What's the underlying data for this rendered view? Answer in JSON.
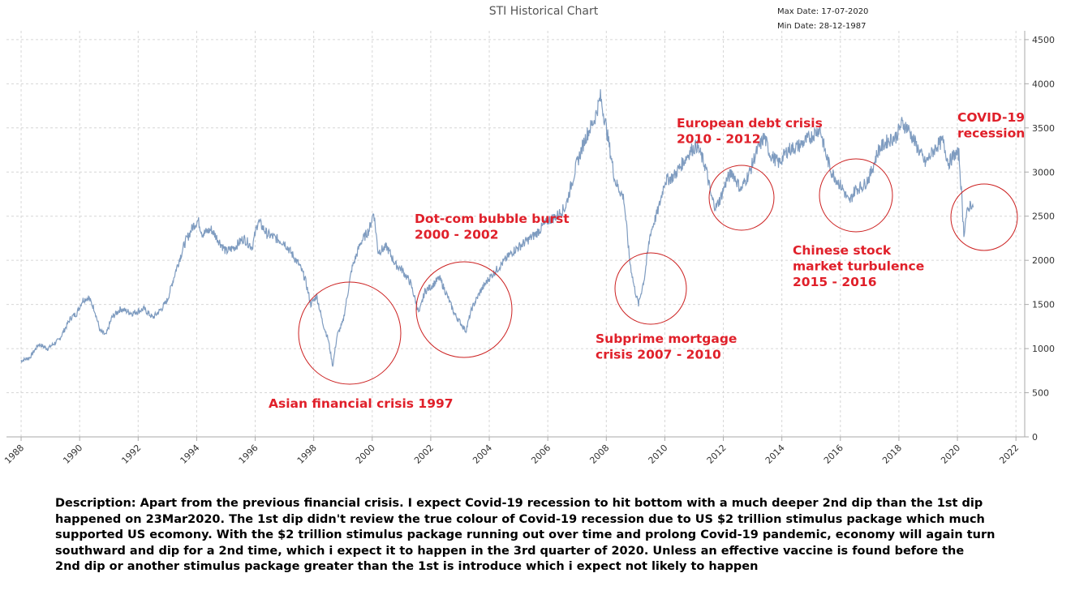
{
  "title": "STI Historical Chart",
  "max_date": "Max Date: 17-07-2020",
  "min_date": "Min Date: 28-12-1987",
  "description": [
    "Description: Apart from the previous financial crisis. I expect Covid-19 recession to hit bottom with a much deeper 2nd dip than the 1st dip",
    "happened on 23Mar2020. The 1st dip didn't review the true colour of Covid-19 recession due to US $2 trillion stimulus package which much",
    "supported US ecomony. With the $2 trillion stimulus package running out over time and prolong Covid-19 pandemic, economy will again turn",
    "southward and dip for a 2nd time, which i expect it to happen in the 3rd quarter of 2020. Unless an effective vaccine is found before the",
    "2nd dip or another stimulus package greater than the 1st is introduce which i expect not likely to happen"
  ],
  "colors": {
    "line": "#7f9cc0",
    "annotation": "#e0202a",
    "grid": "#d6d6d6",
    "axis": "#aaaaaa"
  },
  "chart_data": {
    "type": "line",
    "title": "STI Historical Chart",
    "xlabel": "",
    "ylabel": "",
    "xlim": [
      1987.5,
      2022.3
    ],
    "ylim": [
      0,
      4600
    ],
    "grid": true,
    "y_axis_side": "right",
    "x_ticks": [
      "1988",
      "1990",
      "1992",
      "1994",
      "1996",
      "1998",
      "2000",
      "2002",
      "2004",
      "2006",
      "2008",
      "2010",
      "2012",
      "2014",
      "2016",
      "2018",
      "2020",
      "2022"
    ],
    "y_ticks": [
      "0",
      "500",
      "1000",
      "1500",
      "2000",
      "2500",
      "3000",
      "3500",
      "4000",
      "4500"
    ],
    "series": [
      {
        "x": [
          1987.99,
          1988.3,
          1988.6,
          1988.9,
          1989.3,
          1989.7,
          1989.9,
          1990.1,
          1990.3,
          1990.5,
          1990.7,
          1990.9,
          1991.1,
          1991.4,
          1991.8,
          1992.2,
          1992.5,
          1992.8,
          1993.0,
          1993.3,
          1993.6,
          1993.9,
          1994.05,
          1994.2,
          1994.5,
          1994.8,
          1995.0,
          1995.3,
          1995.6,
          1995.9,
          1996.1,
          1996.4,
          1996.7,
          1997.0,
          1997.3,
          1997.5,
          1997.7,
          1997.9,
          1998.1,
          1998.3,
          1998.5,
          1998.65,
          1998.8,
          1999.0,
          1999.3,
          1999.6,
          1999.9,
          2000.05,
          2000.2,
          2000.5,
          2000.8,
          2001.0,
          2001.3,
          2001.6,
          2001.8,
          2002.0,
          2002.3,
          2002.5,
          2002.8,
          2003.0,
          2003.2,
          2003.4,
          2003.7,
          2004.0,
          2004.4,
          2004.8,
          2005.2,
          2005.6,
          2006.0,
          2006.3,
          2006.6,
          2007.0,
          2007.3,
          2007.6,
          2007.8,
          2008.0,
          2008.3,
          2008.6,
          2008.8,
          2008.95,
          2009.1,
          2009.3,
          2009.5,
          2009.8,
          2010.0,
          2010.3,
          2010.6,
          2010.9,
          2011.1,
          2011.4,
          2011.6,
          2011.75,
          2011.9,
          2012.1,
          2012.3,
          2012.6,
          2012.9,
          2013.1,
          2013.4,
          2013.6,
          2013.9,
          2014.2,
          2014.6,
          2015.0,
          2015.3,
          2015.5,
          2015.7,
          2015.9,
          2016.1,
          2016.3,
          2016.5,
          2016.8,
          2017.0,
          2017.3,
          2017.6,
          2017.9,
          2018.1,
          2018.3,
          2018.6,
          2018.9,
          2019.1,
          2019.3,
          2019.5,
          2019.7,
          2019.9,
          2020.05,
          2020.15,
          2020.22,
          2020.3,
          2020.45,
          2020.54
        ],
        "y": [
          860,
          900,
          1050,
          1000,
          1100,
          1350,
          1400,
          1550,
          1580,
          1450,
          1200,
          1150,
          1350,
          1450,
          1400,
          1450,
          1350,
          1450,
          1550,
          1900,
          2200,
          2400,
          2450,
          2300,
          2350,
          2200,
          2100,
          2150,
          2250,
          2150,
          2450,
          2300,
          2250,
          2200,
          2050,
          1950,
          1800,
          1500,
          1600,
          1300,
          1100,
          800,
          1150,
          1300,
          1900,
          2200,
          2350,
          2550,
          2100,
          2150,
          1950,
          1900,
          1750,
          1400,
          1650,
          1700,
          1800,
          1650,
          1400,
          1300,
          1200,
          1450,
          1650,
          1800,
          1950,
          2100,
          2200,
          2300,
          2450,
          2500,
          2600,
          3100,
          3400,
          3600,
          3850,
          3500,
          2900,
          2700,
          2000,
          1700,
          1500,
          1800,
          2300,
          2600,
          2900,
          2950,
          3100,
          3250,
          3300,
          3050,
          2700,
          2600,
          2700,
          2900,
          3000,
          2800,
          3000,
          3200,
          3400,
          3200,
          3100,
          3250,
          3300,
          3400,
          3500,
          3200,
          3000,
          2900,
          2800,
          2650,
          2800,
          2850,
          2950,
          3250,
          3350,
          3400,
          3550,
          3500,
          3300,
          3100,
          3200,
          3300,
          3350,
          3100,
          3200,
          3200,
          2700,
          2300,
          2500,
          2650,
          2600
        ]
      }
    ],
    "annotations": [
      {
        "lines": [
          "Asian financial crisis 1997"
        ]
      },
      {
        "lines": [
          "Dot-com bubble burst",
          "2000 - 2002"
        ]
      },
      {
        "lines": [
          "Subprime mortgage",
          "crisis 2007 - 2010"
        ]
      },
      {
        "lines": [
          "European debt crisis",
          "2010 - 2012"
        ]
      },
      {
        "lines": [
          "Chinese stock",
          "market turbulence",
          "2015 - 2016"
        ]
      },
      {
        "lines": [
          "COVID-19",
          "recession"
        ]
      }
    ]
  }
}
